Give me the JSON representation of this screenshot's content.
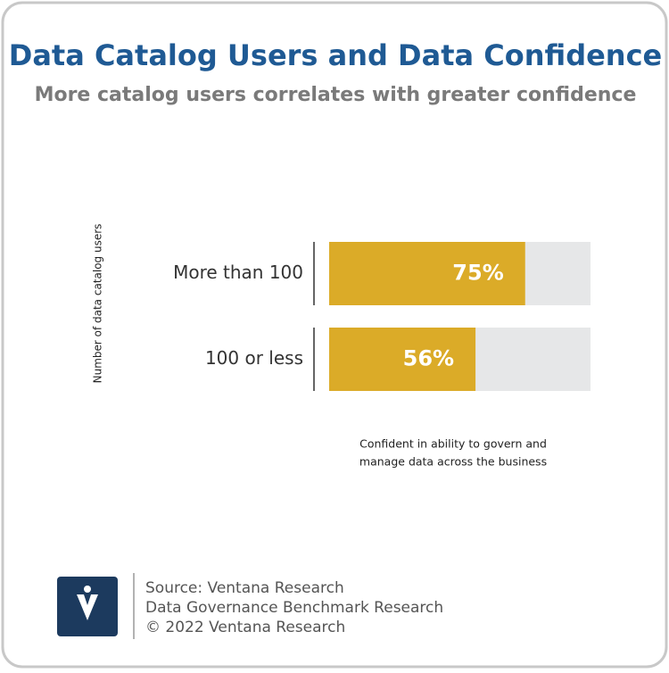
{
  "chart_data": {
    "type": "bar",
    "orientation": "horizontal",
    "title": "Data Catalog Users and Data Confidence",
    "subtitle": "More catalog users correlates with greater confidence",
    "y_label": "Number of data catalog users",
    "x_label": [
      "Confident in ability to govern and",
      "manage data across the business"
    ],
    "categories": [
      "More than 100",
      "100 or less"
    ],
    "values": [
      75,
      56
    ],
    "value_labels": [
      "75%",
      "56%"
    ],
    "color": "#dbab28",
    "track_color": "#e6e7e8",
    "xlim": [
      0,
      100
    ]
  },
  "footer": {
    "lines": [
      "Source: Ventana Research",
      "Data Governance Benchmark Research",
      "©  2022 Ventana Research"
    ]
  }
}
